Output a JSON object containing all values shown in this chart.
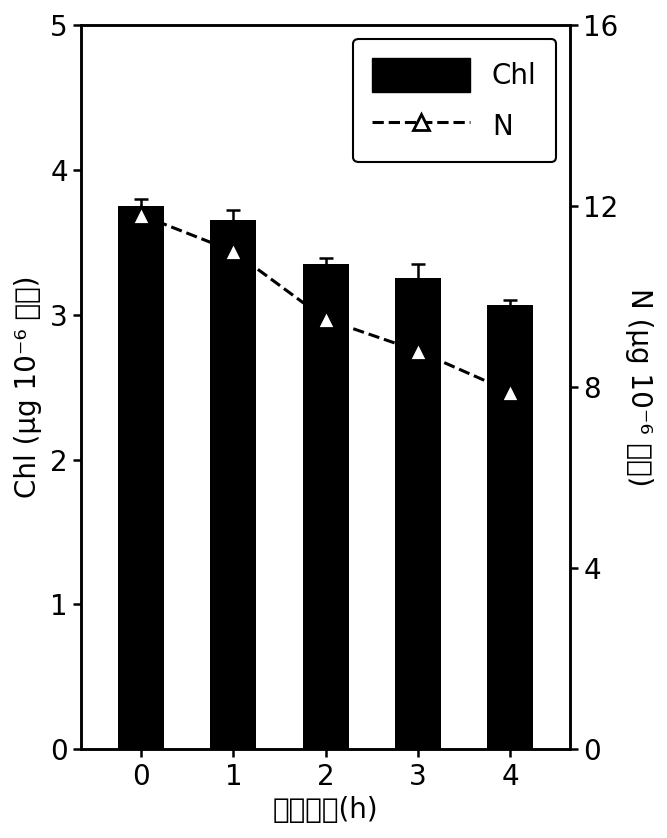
{
  "x": [
    0,
    1,
    2,
    3,
    4
  ],
  "chl_values": [
    3.75,
    3.65,
    3.35,
    3.25,
    3.07
  ],
  "chl_errors": [
    0.05,
    0.07,
    0.04,
    0.1,
    0.03
  ],
  "n_values": [
    11.8,
    11.0,
    9.5,
    8.8,
    7.9
  ],
  "chl_ylim": [
    0,
    5
  ],
  "chl_yticks": [
    0,
    1,
    2,
    3,
    4,
    5
  ],
  "n_ylim": [
    0,
    16
  ],
  "n_yticks": [
    0,
    4,
    8,
    12,
    16
  ],
  "xlabel": "胁迫时间(h)",
  "ylabel_left": "Chl (μg 10⁻⁶ 细胞)",
  "ylabel_right": "N (μg 10⁻⁶ 细胞)",
  "bar_color": "#000000",
  "bar_width": 0.5,
  "line_color": "#000000",
  "legend_bar_label": "Chl",
  "legend_line_label": "N",
  "figsize": [
    6.67,
    8.38
  ],
  "dpi": 100,
  "tick_fontsize": 20,
  "label_fontsize": 20,
  "legend_fontsize": 20
}
